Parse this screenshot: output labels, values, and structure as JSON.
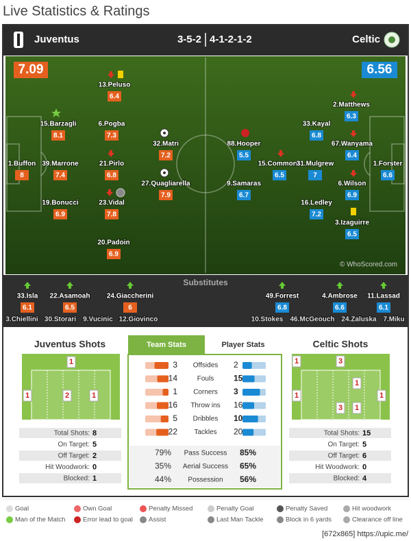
{
  "header": {
    "title": "Live Statistics & Ratings"
  },
  "match": {
    "home": {
      "team": "Juventus",
      "formation": "3-5-2",
      "rating": 7.09
    },
    "away": {
      "team": "Celtic",
      "formation": "4-1-2-1-2",
      "rating": 6.56
    }
  },
  "players": {
    "home": [
      {
        "name": "13.Peluso",
        "rating": 6.4
      },
      {
        "name": "15.Barzagli",
        "rating": 8.1
      },
      {
        "name": "6.Pogba",
        "rating": 7.3
      },
      {
        "name": "32.Matri",
        "rating": 7.2
      },
      {
        "name": "1.Buffon",
        "rating": 8
      },
      {
        "name": "39.Marrone",
        "rating": 7.4
      },
      {
        "name": "21.Pirlo",
        "rating": 6.8
      },
      {
        "name": "27.Quagliarella",
        "rating": 7.9
      },
      {
        "name": "19.Bonucci",
        "rating": 6.9
      },
      {
        "name": "23.Vidal",
        "rating": 7.8
      },
      {
        "name": "20.Padoin",
        "rating": 6.9
      }
    ],
    "away": [
      {
        "name": "2.Matthews",
        "rating": 6.3
      },
      {
        "name": "33.Kayal",
        "rating": 6.8
      },
      {
        "name": "88.Hooper",
        "rating": 5.5
      },
      {
        "name": "67.Wanyama",
        "rating": 6.4
      },
      {
        "name": "15.Commons",
        "rating": 6.5
      },
      {
        "name": "31.Mulgrew",
        "rating": 7
      },
      {
        "name": "1.Forster",
        "rating": 6.6
      },
      {
        "name": "9.Samaras",
        "rating": 6.7
      },
      {
        "name": "6.Wilson",
        "rating": 6.9
      },
      {
        "name": "16.Ledley",
        "rating": 7.2
      },
      {
        "name": "3.Izaguirre",
        "rating": 6.5
      }
    ]
  },
  "watermark": "© WhoScored.com",
  "substitutes": {
    "label": "Substitutes",
    "home": [
      {
        "name": "33.Isla",
        "rating": 6.1
      },
      {
        "name": "22.Asamoah",
        "rating": 6.5
      },
      {
        "name": "24.Giaccherini",
        "rating": 6
      }
    ],
    "away": [
      {
        "name": "49.Forrest",
        "rating": 6.8
      },
      {
        "name": "4.Ambrose",
        "rating": 6.6
      },
      {
        "name": "11.Lassad",
        "rating": 6.1
      }
    ],
    "home_unused": [
      "3.Chiellini",
      "30.Storari",
      "9.Vucinic",
      "12.Giovinco"
    ],
    "away_unused": [
      "10.Stokes",
      "46.McGeouch",
      "24.Zaluska",
      "7.Miku"
    ]
  },
  "shots": {
    "home": {
      "title": "Juventus Shots",
      "zones": [
        1,
        1,
        2,
        1
      ],
      "stats": [
        {
          "label": "Total Shots:",
          "value": 8
        },
        {
          "label": "On Target:",
          "value": 5
        },
        {
          "label": "Off Target:",
          "value": 2
        },
        {
          "label": "Hit Woodwork:",
          "value": 0
        },
        {
          "label": "Blocked:",
          "value": 1
        }
      ]
    },
    "away": {
      "title": "Celtic Shots",
      "zones": [
        1,
        3,
        1,
        1,
        1,
        3,
        1
      ],
      "stats": [
        {
          "label": "Total Shots:",
          "value": 15
        },
        {
          "label": "On Target:",
          "value": 5
        },
        {
          "label": "Off Target:",
          "value": 6
        },
        {
          "label": "Hit Woodwork:",
          "value": 0
        },
        {
          "label": "Blocked:",
          "value": 4
        }
      ]
    }
  },
  "team_stats": {
    "tabs": [
      "Team Stats",
      "Player Stats"
    ],
    "rows": [
      {
        "label": "Offsides",
        "home": 3,
        "away": 2
      },
      {
        "label": "Fouls",
        "home": 14,
        "away": 15
      },
      {
        "label": "Corners",
        "home": 1,
        "away": 3
      },
      {
        "label": "Throw ins",
        "home": 16,
        "away": 16
      },
      {
        "label": "Dribbles",
        "home": 5,
        "away": 10
      },
      {
        "label": "Tackles",
        "home": 22,
        "away": 20
      }
    ],
    "percent_rows": [
      {
        "label": "Pass Success",
        "home": "79%",
        "away": "85%"
      },
      {
        "label": "Aerial Success",
        "home": "35%",
        "away": "65%"
      },
      {
        "label": "Possession",
        "home": "44%",
        "away": "56%"
      }
    ]
  },
  "legend": [
    "Goal",
    "Own Goal",
    "Penalty Missed",
    "Penalty Goal",
    "Penalty Saved",
    "Hit woodwork",
    "Man of the Match",
    "Error lead to goal",
    "Assist",
    "Last Man Tackle",
    "Block in 6 yards",
    "Clearance off line"
  ],
  "footer": "[672x865] https://upic.me/"
}
